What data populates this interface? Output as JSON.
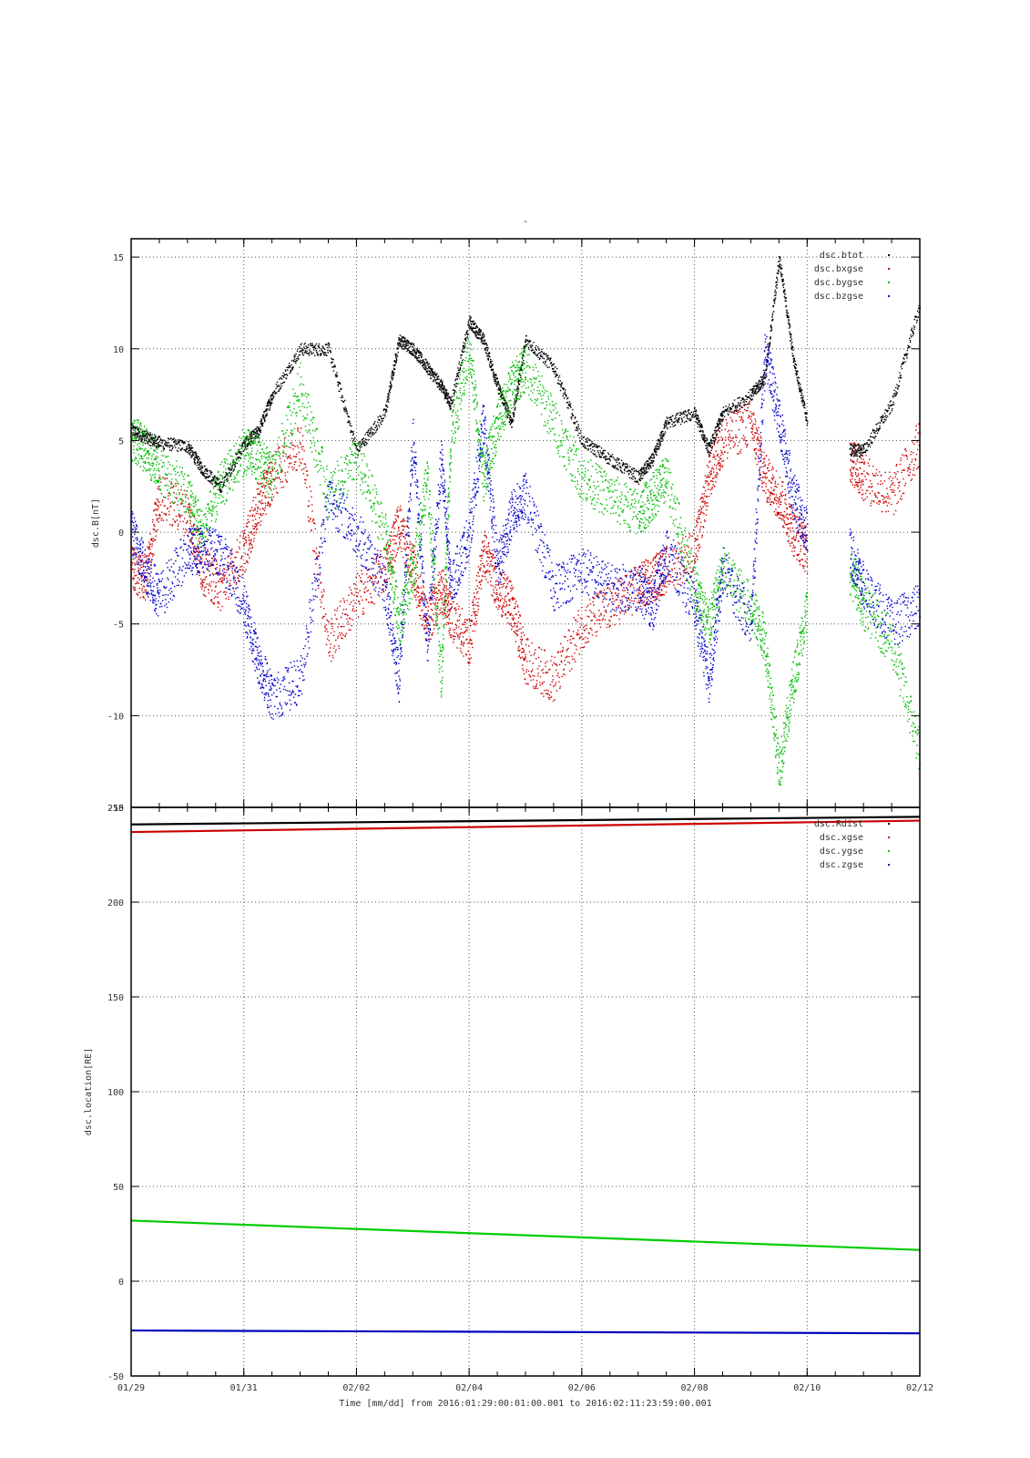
{
  "figure": {
    "top_title": "-",
    "xlabel": "Time [mm/dd]  from 2016:01:29:00:01:00.001  to  2016:02:11:23:59:00.001",
    "x_tick_labels": [
      "01/29",
      "01/31",
      "02/02",
      "02/04",
      "02/06",
      "02/08",
      "02/10",
      "02/12"
    ],
    "x_tick_dates": [
      "2016-01-29",
      "2016-01-31",
      "2016-02-02",
      "2016-02-04",
      "2016-02-06",
      "2016-02-08",
      "2016-02-10",
      "2016-02-12"
    ],
    "xlim": [
      "2016-01-29",
      "2016-02-12"
    ],
    "grid": true,
    "legend_position": "top-right"
  },
  "chart_data": [
    {
      "type": "scatter",
      "ylabel": "dsc.B[nT]",
      "ylim": [
        -15,
        16
      ],
      "y_ticks": [
        -15,
        -10,
        -5,
        0,
        5,
        10,
        15
      ],
      "series": [
        {
          "name": "dsc.btot",
          "color": "#000000",
          "x": [
            "2016-01-29T00:00",
            "2016-01-29T06:00",
            "2016-01-29T12:00",
            "2016-01-30T00:00",
            "2016-01-30T06:00",
            "2016-01-30T14:00",
            "2016-01-31T00:00",
            "2016-01-31T06:00",
            "2016-01-31T12:00",
            "2016-02-01T00:00",
            "2016-02-01T12:00",
            "2016-02-02T00:00",
            "2016-02-02T12:00",
            "2016-02-02T18:00",
            "2016-02-03T00:00",
            "2016-02-03T06:00",
            "2016-02-03T12:00",
            "2016-02-03T16:00",
            "2016-02-04T00:00",
            "2016-02-04T06:00",
            "2016-02-04T12:00",
            "2016-02-04T18:00",
            "2016-02-05T00:00",
            "2016-02-05T12:00",
            "2016-02-06T00:00",
            "2016-02-06T12:00",
            "2016-02-07T00:00",
            "2016-02-07T06:00",
            "2016-02-07T12:00",
            "2016-02-08T00:00",
            "2016-02-08T06:00",
            "2016-02-08T12:00",
            "2016-02-09T00:00",
            "2016-02-09T06:00",
            "2016-02-09T12:00",
            "2016-02-09T18:00",
            "2016-02-10T00:00",
            "2016-02-10T12:00",
            "2016-02-10T18:00",
            "2016-02-11T00:00",
            "2016-02-11T12:00",
            "2016-02-12T00:00"
          ],
          "y": [
            5.6,
            5.2,
            4.9,
            4.7,
            3.5,
            2.5,
            4.8,
            5.5,
            7.5,
            10,
            10,
            4.5,
            6.5,
            10.5,
            10,
            9,
            8,
            7,
            11.5,
            10.5,
            8,
            6,
            10.5,
            9,
            5,
            4,
            3,
            4,
            6,
            6.5,
            4.5,
            6.5,
            7.5,
            8.5,
            15,
            9.5,
            6,
            null,
            4.5,
            4.5,
            7,
            12.5
          ]
        },
        {
          "name": "dsc.bxgse",
          "color": "#cc0000",
          "x": [
            "2016-01-29T00:00",
            "2016-01-29T06:00",
            "2016-01-29T12:00",
            "2016-01-30T00:00",
            "2016-01-30T06:00",
            "2016-01-30T14:00",
            "2016-01-31T00:00",
            "2016-01-31T06:00",
            "2016-01-31T12:00",
            "2016-02-01T00:00",
            "2016-02-01T12:00",
            "2016-02-02T00:00",
            "2016-02-02T12:00",
            "2016-02-02T18:00",
            "2016-02-03T00:00",
            "2016-02-03T06:00",
            "2016-02-03T12:00",
            "2016-02-03T16:00",
            "2016-02-04T00:00",
            "2016-02-04T06:00",
            "2016-02-04T12:00",
            "2016-02-04T18:00",
            "2016-02-05T00:00",
            "2016-02-05T12:00",
            "2016-02-06T00:00",
            "2016-02-06T12:00",
            "2016-02-07T00:00",
            "2016-02-07T06:00",
            "2016-02-07T12:00",
            "2016-02-08T00:00",
            "2016-02-08T06:00",
            "2016-02-08T12:00",
            "2016-02-09T00:00",
            "2016-02-09T06:00",
            "2016-02-09T12:00",
            "2016-02-09T18:00",
            "2016-02-10T00:00",
            "2016-02-10T12:00",
            "2016-02-10T18:00",
            "2016-02-11T00:00",
            "2016-02-11T12:00",
            "2016-02-12T00:00"
          ],
          "y": [
            -2,
            -2.5,
            2,
            1,
            -2,
            -3,
            -1,
            1.5,
            3,
            5,
            -6,
            -3.5,
            -2,
            0.5,
            -2,
            -5,
            -3,
            -4.5,
            -6,
            -1,
            -3,
            -4,
            -7,
            -8,
            -5,
            -4,
            -3,
            -2.5,
            -2,
            -1,
            3,
            5,
            6,
            3,
            2,
            0,
            -1,
            null,
            4,
            3,
            2,
            5
          ]
        },
        {
          "name": "dsc.bygse",
          "color": "#00bb00",
          "x": [
            "2016-01-29T00:00",
            "2016-01-29T06:00",
            "2016-01-29T12:00",
            "2016-01-30T00:00",
            "2016-01-30T06:00",
            "2016-01-30T14:00",
            "2016-01-31T00:00",
            "2016-01-31T06:00",
            "2016-01-31T12:00",
            "2016-02-01T00:00",
            "2016-02-01T12:00",
            "2016-02-02T00:00",
            "2016-02-02T12:00",
            "2016-02-02T18:00",
            "2016-02-03T00:00",
            "2016-02-03T06:00",
            "2016-02-03T12:00",
            "2016-02-03T16:00",
            "2016-02-04T00:00",
            "2016-02-04T06:00",
            "2016-02-04T12:00",
            "2016-02-04T18:00",
            "2016-02-05T00:00",
            "2016-02-05T12:00",
            "2016-02-06T00:00",
            "2016-02-06T12:00",
            "2016-02-07T00:00",
            "2016-02-07T06:00",
            "2016-02-07T12:00",
            "2016-02-08T00:00",
            "2016-02-08T06:00",
            "2016-02-08T12:00",
            "2016-02-09T00:00",
            "2016-02-09T06:00",
            "2016-02-09T12:00",
            "2016-02-09T18:00",
            "2016-02-10T00:00",
            "2016-02-10T12:00",
            "2016-02-10T18:00",
            "2016-02-11T00:00",
            "2016-02-11T12:00",
            "2016-02-12T00:00"
          ],
          "y": [
            5.2,
            4.5,
            3.5,
            2,
            0,
            2.5,
            4.5,
            4,
            3,
            8,
            2,
            4,
            0,
            -5,
            -2,
            3,
            -8,
            5,
            10,
            3,
            6,
            8,
            9,
            6,
            3,
            2,
            1,
            2,
            3,
            -3,
            -5,
            -2,
            -4,
            -6,
            -13,
            -8,
            -4,
            null,
            -2,
            -4,
            -6,
            -12
          ]
        },
        {
          "name": "dsc.bzgse",
          "color": "#0000cc",
          "x": [
            "2016-01-29T00:00",
            "2016-01-29T06:00",
            "2016-01-29T12:00",
            "2016-01-30T00:00",
            "2016-01-30T06:00",
            "2016-01-30T14:00",
            "2016-01-31T00:00",
            "2016-01-31T06:00",
            "2016-01-31T12:00",
            "2016-02-01T00:00",
            "2016-02-01T12:00",
            "2016-02-02T00:00",
            "2016-02-02T12:00",
            "2016-02-02T18:00",
            "2016-02-03T00:00",
            "2016-02-03T06:00",
            "2016-02-03T12:00",
            "2016-02-03T16:00",
            "2016-02-04T00:00",
            "2016-02-04T06:00",
            "2016-02-04T12:00",
            "2016-02-04T18:00",
            "2016-02-05T00:00",
            "2016-02-05T12:00",
            "2016-02-06T00:00",
            "2016-02-06T12:00",
            "2016-02-07T00:00",
            "2016-02-07T06:00",
            "2016-02-07T12:00",
            "2016-02-08T00:00",
            "2016-02-08T06:00",
            "2016-02-08T12:00",
            "2016-02-09T00:00",
            "2016-02-09T06:00",
            "2016-02-09T12:00",
            "2016-02-09T18:00",
            "2016-02-10T00:00",
            "2016-02-10T12:00",
            "2016-02-10T18:00",
            "2016-02-11T00:00",
            "2016-02-11T12:00",
            "2016-02-12T00:00"
          ],
          "y": [
            0,
            -2,
            -3.5,
            -1,
            -1,
            -1,
            -4,
            -7,
            -9,
            -8,
            2,
            0,
            -3,
            -8,
            5,
            -6,
            4,
            -3,
            0,
            6,
            -2,
            1,
            2,
            -3,
            -2,
            -3,
            -3,
            -4,
            -1,
            -4,
            -8,
            -2,
            -5,
            10,
            6,
            2,
            0,
            null,
            -1,
            -3,
            -5,
            -4
          ]
        }
      ]
    },
    {
      "type": "line",
      "ylabel": "dsc.location[RE]",
      "ylim": [
        -50,
        250
      ],
      "y_ticks": [
        -50,
        0,
        50,
        100,
        150,
        200,
        250
      ],
      "series": [
        {
          "name": "dsc.Rdist",
          "color": "#000000",
          "x": [
            "2016-01-29",
            "2016-02-12"
          ],
          "y": [
            241,
            245
          ]
        },
        {
          "name": "dsc.xgse",
          "color": "#cc0000",
          "x": [
            "2016-01-29",
            "2016-02-12"
          ],
          "y": [
            237,
            243
          ]
        },
        {
          "name": "dsc.ygse",
          "color": "#00cc00",
          "x": [
            "2016-01-29",
            "2016-02-12"
          ],
          "y": [
            32,
            16.5
          ]
        },
        {
          "name": "dsc.zgse",
          "color": "#0000bb",
          "x": [
            "2016-01-29",
            "2016-02-12"
          ],
          "y": [
            -26,
            -27.5
          ]
        }
      ]
    }
  ]
}
